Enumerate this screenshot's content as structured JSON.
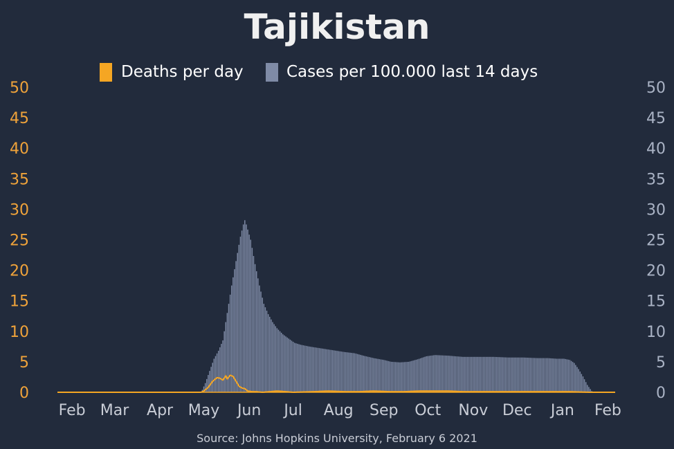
{
  "chart_data": {
    "type": "bar",
    "title": "Tajikistan",
    "source": "Source: Johns Hopkins University, February 6 2021",
    "colors": {
      "background": "#222b3c",
      "deaths": "#f5a623",
      "cases": "#7f8ba6",
      "left_axis_text": "#f0a33a",
      "right_axis_text": "#aab3c5",
      "x_axis_text": "#c9cdd6",
      "title_text": "#f0f0f0",
      "legend_text": "#ffffff",
      "source_text": "#c9cdd6"
    },
    "legend": {
      "placement": "top-center",
      "entries": [
        {
          "label": "Deaths per day",
          "color": "#f5a623"
        },
        {
          "label": "Cases per 100.000 last 14 days",
          "color": "#7f8ba6"
        }
      ]
    },
    "x_ticks": [
      "Feb",
      "Mar",
      "Apr",
      "May",
      "Jun",
      "Jul",
      "Aug",
      "Sep",
      "Oct",
      "Nov",
      "Dec",
      "Jan",
      "Feb"
    ],
    "y_left": {
      "min": 0,
      "max": 50,
      "ticks": [
        0,
        5,
        10,
        15,
        20,
        25,
        30,
        35,
        40,
        45,
        50
      ]
    },
    "y_right": {
      "min": 0,
      "max": 50,
      "ticks": [
        0,
        5,
        10,
        15,
        20,
        25,
        30,
        35,
        40,
        45,
        50
      ]
    },
    "date_range": [
      "2020-01-22",
      "2021-02-06"
    ],
    "cases_per_100k_14d": {
      "name": "Cases per 100.000 last 14 days",
      "points": [
        [
          "2020-04-29",
          0
        ],
        [
          "2020-04-30",
          0.4
        ],
        [
          "2020-05-02",
          1.5
        ],
        [
          "2020-05-05",
          3.5
        ],
        [
          "2020-05-08",
          5.5
        ],
        [
          "2020-05-11",
          6.8
        ],
        [
          "2020-05-14",
          8.5
        ],
        [
          "2020-05-17",
          13
        ],
        [
          "2020-05-20",
          17.5
        ],
        [
          "2020-05-23",
          21.5
        ],
        [
          "2020-05-26",
          25.5
        ],
        [
          "2020-05-28",
          27.5
        ],
        [
          "2020-05-29",
          28.2
        ],
        [
          "2020-05-30",
          27.5
        ],
        [
          "2020-06-02",
          25
        ],
        [
          "2020-06-05",
          21
        ],
        [
          "2020-06-08",
          17.5
        ],
        [
          "2020-06-11",
          14.5
        ],
        [
          "2020-06-14",
          12.8
        ],
        [
          "2020-06-17",
          11.5
        ],
        [
          "2020-06-20",
          10.5
        ],
        [
          "2020-06-24",
          9.5
        ],
        [
          "2020-06-28",
          8.8
        ],
        [
          "2020-07-02",
          8.1
        ],
        [
          "2020-07-06",
          7.8
        ],
        [
          "2020-07-12",
          7.5
        ],
        [
          "2020-07-20",
          7.2
        ],
        [
          "2020-07-28",
          6.9
        ],
        [
          "2020-08-05",
          6.6
        ],
        [
          "2020-08-12",
          6.4
        ],
        [
          "2020-08-18",
          6.0
        ],
        [
          "2020-08-25",
          5.6
        ],
        [
          "2020-09-01",
          5.3
        ],
        [
          "2020-09-06",
          5.0
        ],
        [
          "2020-09-12",
          4.9
        ],
        [
          "2020-09-18",
          5.0
        ],
        [
          "2020-09-24",
          5.4
        ],
        [
          "2020-09-30",
          5.9
        ],
        [
          "2020-10-06",
          6.1
        ],
        [
          "2020-10-15",
          6.0
        ],
        [
          "2020-10-25",
          5.8
        ],
        [
          "2020-11-05",
          5.8
        ],
        [
          "2020-11-15",
          5.8
        ],
        [
          "2020-11-25",
          5.7
        ],
        [
          "2020-12-05",
          5.7
        ],
        [
          "2020-12-15",
          5.6
        ],
        [
          "2020-12-22",
          5.6
        ],
        [
          "2020-12-28",
          5.5
        ],
        [
          "2021-01-02",
          5.5
        ],
        [
          "2021-01-06",
          5.3
        ],
        [
          "2021-01-09",
          4.8
        ],
        [
          "2021-01-12",
          3.8
        ],
        [
          "2021-01-15",
          2.6
        ],
        [
          "2021-01-18",
          1.2
        ],
        [
          "2021-01-21",
          0.2
        ],
        [
          "2021-01-22",
          0
        ]
      ]
    },
    "deaths_per_day": {
      "name": "Deaths per day",
      "points": [
        [
          "2020-01-22",
          0
        ],
        [
          "2020-04-29",
          0
        ],
        [
          "2020-05-01",
          0.2
        ],
        [
          "2020-05-04",
          0.8
        ],
        [
          "2020-05-07",
          1.8
        ],
        [
          "2020-05-10",
          2.4
        ],
        [
          "2020-05-12",
          2.3
        ],
        [
          "2020-05-14",
          2.0
        ],
        [
          "2020-05-16",
          2.7
        ],
        [
          "2020-05-17",
          2.2
        ],
        [
          "2020-05-19",
          2.8
        ],
        [
          "2020-05-21",
          2.6
        ],
        [
          "2020-05-23",
          1.8
        ],
        [
          "2020-05-25",
          1.0
        ],
        [
          "2020-05-27",
          0.7
        ],
        [
          "2020-05-29",
          0.6
        ],
        [
          "2020-05-31",
          0.2
        ],
        [
          "2020-06-03",
          0.1
        ],
        [
          "2020-06-06",
          0.1
        ],
        [
          "2020-06-10",
          0
        ],
        [
          "2020-06-15",
          0.1
        ],
        [
          "2020-06-20",
          0.2
        ],
        [
          "2020-06-26",
          0.1
        ],
        [
          "2020-07-01",
          0
        ],
        [
          "2020-07-15",
          0.1
        ],
        [
          "2020-07-25",
          0.2
        ],
        [
          "2020-08-05",
          0.1
        ],
        [
          "2020-08-15",
          0.1
        ],
        [
          "2020-08-25",
          0.2
        ],
        [
          "2020-09-05",
          0.1
        ],
        [
          "2020-09-15",
          0.1
        ],
        [
          "2020-09-25",
          0.2
        ],
        [
          "2020-10-05",
          0.2
        ],
        [
          "2020-10-15",
          0.2
        ],
        [
          "2020-10-25",
          0.1
        ],
        [
          "2020-11-05",
          0.1
        ],
        [
          "2020-11-15",
          0.1
        ],
        [
          "2020-11-25",
          0.1
        ],
        [
          "2020-12-05",
          0.1
        ],
        [
          "2020-12-15",
          0.1
        ],
        [
          "2020-12-25",
          0.1
        ],
        [
          "2021-01-05",
          0.1
        ],
        [
          "2021-01-20",
          0
        ],
        [
          "2021-02-06",
          0
        ]
      ]
    }
  }
}
